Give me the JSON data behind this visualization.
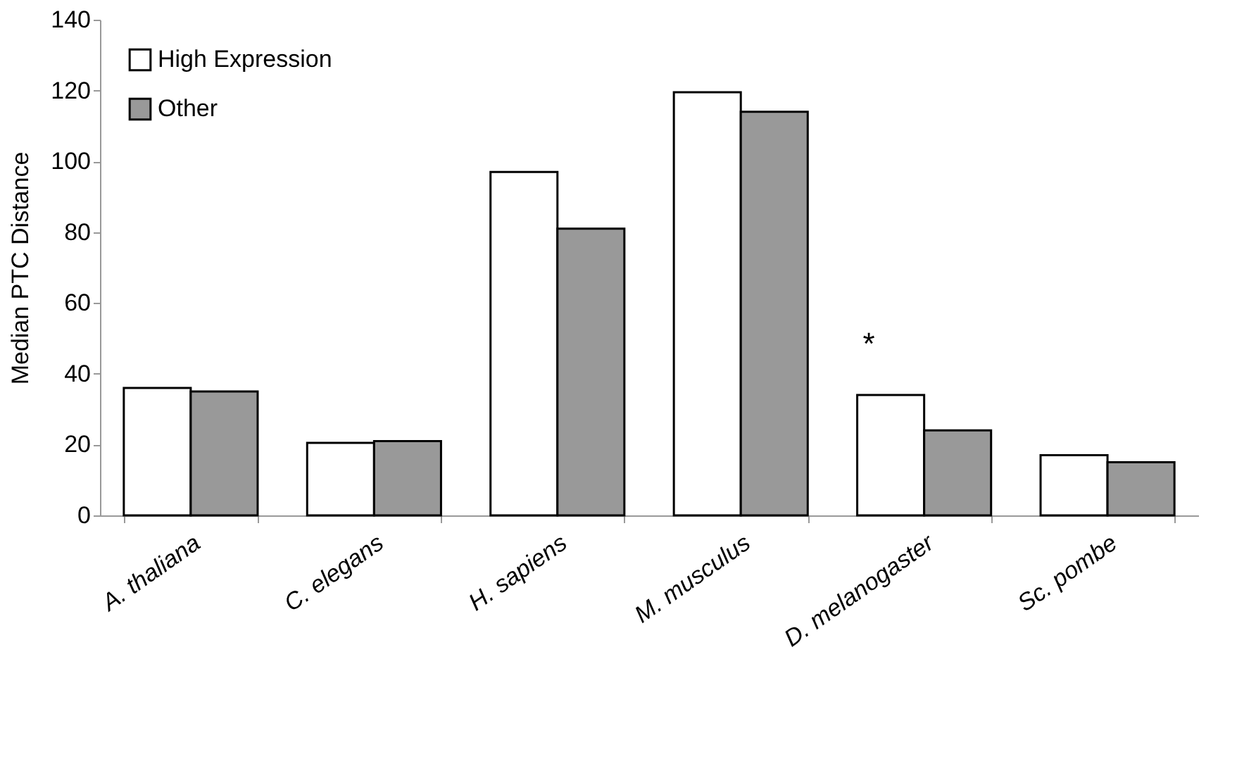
{
  "chart_data": {
    "type": "bar",
    "ylabel": "Median PTC Distance",
    "categories": [
      "A. thaliana",
      "C. elegans",
      "H. sapiens",
      "M. musculus",
      "D. melanogaster",
      "Sc. pombe"
    ],
    "series": [
      {
        "name": "High Expression",
        "color": "#ffffff",
        "values": [
          36,
          20.5,
          97,
          119.5,
          34,
          17
        ]
      },
      {
        "name": "Other",
        "color": "#999999",
        "values": [
          35,
          21,
          81,
          114,
          24,
          15
        ]
      }
    ],
    "ylim": [
      0,
      140
    ],
    "yticks": [
      0,
      20,
      40,
      60,
      80,
      100,
      120,
      140
    ],
    "grid": false,
    "legend": "top left",
    "annotations": [
      "*"
    ]
  }
}
